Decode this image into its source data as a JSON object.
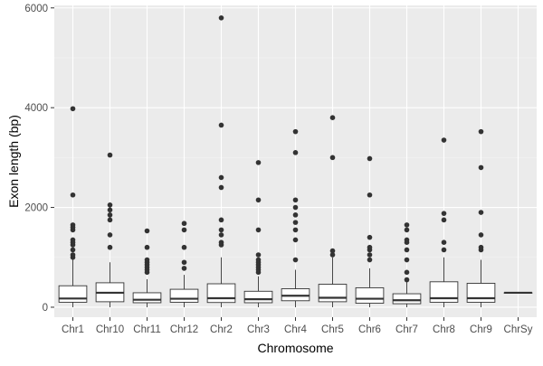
{
  "chart_data": {
    "type": "boxplot",
    "title": "",
    "xlabel": "Chromosome",
    "ylabel": "Exon length (bp)",
    "ylim": [
      -200,
      6050
    ],
    "yticks": [
      0,
      2000,
      4000,
      6000
    ],
    "grid": true,
    "legend": "none",
    "categories": [
      "Chr1",
      "Chr10",
      "Chr11",
      "Chr12",
      "Chr2",
      "Chr3",
      "Chr4",
      "Chr5",
      "Chr6",
      "Chr7",
      "Chr8",
      "Chr9",
      "ChrSy"
    ],
    "boxes": [
      {
        "category": "Chr1",
        "lower_whisker": 0,
        "q1": 100,
        "median": 175,
        "q3": 430,
        "upper_whisker": 950,
        "outliers": [
          1000,
          1050,
          1150,
          1250,
          1300,
          1350,
          1550,
          1600,
          1650,
          2250,
          3980
        ]
      },
      {
        "category": "Chr10",
        "lower_whisker": 0,
        "q1": 110,
        "median": 290,
        "q3": 490,
        "upper_whisker": 900,
        "outliers": [
          1200,
          1450,
          1750,
          1850,
          1950,
          2050,
          3050
        ]
      },
      {
        "category": "Chr11",
        "lower_whisker": 0,
        "q1": 90,
        "median": 150,
        "q3": 290,
        "upper_whisker": 560,
        "outliers": [
          700,
          750,
          800,
          850,
          900,
          950,
          1200,
          1530
        ]
      },
      {
        "category": "Chr12",
        "lower_whisker": 0,
        "q1": 100,
        "median": 170,
        "q3": 360,
        "upper_whisker": 650,
        "outliers": [
          780,
          900,
          1200,
          1550,
          1680
        ]
      },
      {
        "category": "Chr2",
        "lower_whisker": 0,
        "q1": 95,
        "median": 180,
        "q3": 470,
        "upper_whisker": 1000,
        "outliers": [
          1250,
          1300,
          1450,
          1550,
          1750,
          2400,
          2600,
          3650,
          5800
        ]
      },
      {
        "category": "Chr3",
        "lower_whisker": 0,
        "q1": 90,
        "median": 160,
        "q3": 320,
        "upper_whisker": 620,
        "outliers": [
          700,
          750,
          800,
          850,
          900,
          950,
          1050,
          1550,
          2150,
          2900
        ]
      },
      {
        "category": "Chr4",
        "lower_whisker": 0,
        "q1": 130,
        "median": 230,
        "q3": 370,
        "upper_whisker": 750,
        "outliers": [
          950,
          1350,
          1550,
          1700,
          1850,
          2000,
          2150,
          3100,
          3520
        ]
      },
      {
        "category": "Chr5",
        "lower_whisker": 0,
        "q1": 110,
        "median": 190,
        "q3": 460,
        "upper_whisker": 1000,
        "outliers": [
          1050,
          1130,
          3000,
          3800
        ]
      },
      {
        "category": "Chr6",
        "lower_whisker": 0,
        "q1": 80,
        "median": 170,
        "q3": 390,
        "upper_whisker": 780,
        "outliers": [
          950,
          1050,
          1150,
          1200,
          1400,
          2250,
          2980
        ]
      },
      {
        "category": "Chr7",
        "lower_whisker": 0,
        "q1": 70,
        "median": 140,
        "q3": 270,
        "upper_whisker": 530,
        "outliers": [
          550,
          700,
          950,
          1150,
          1300,
          1350,
          1550,
          1650
        ]
      },
      {
        "category": "Chr8",
        "lower_whisker": 0,
        "q1": 100,
        "median": 180,
        "q3": 510,
        "upper_whisker": 1000,
        "outliers": [
          1150,
          1300,
          1750,
          1880,
          3350
        ]
      },
      {
        "category": "Chr9",
        "lower_whisker": 0,
        "q1": 100,
        "median": 180,
        "q3": 480,
        "upper_whisker": 950,
        "outliers": [
          1150,
          1200,
          1450,
          1900,
          2800,
          3520
        ]
      },
      {
        "category": "ChrSy",
        "lower_whisker": 290,
        "q1": 290,
        "median": 290,
        "q3": 290,
        "upper_whisker": 290,
        "outliers": []
      }
    ],
    "colors": {
      "panel_background": "#ebebeb",
      "grid_major": "#ffffff",
      "grid_minor": "#f4f4f4",
      "box_fill": "#ffffff",
      "box_stroke": "#333333",
      "outlier": "#333333",
      "tick_label": "#4d4d4d",
      "axis_title": "#000000"
    }
  }
}
